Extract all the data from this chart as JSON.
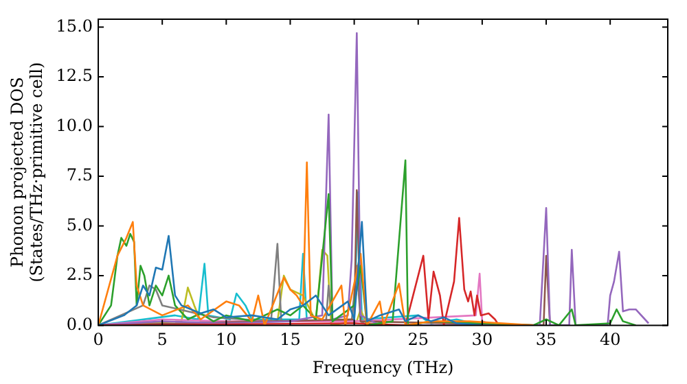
{
  "chart_data": {
    "type": "line",
    "xlabel": "Frequency (THz)",
    "ylabel": "Phonon projected DOS\n(States/THz·primitive cell)",
    "xlim": [
      0,
      44.5
    ],
    "xticks": [
      0,
      5,
      10,
      15,
      20,
      25,
      30,
      35,
      40
    ],
    "ylim": [
      0,
      15.4
    ],
    "yticks": [
      {
        "value": 0,
        "label": "0.0"
      },
      2.5,
      {
        "value": 5,
        "label": "5.0"
      },
      7.5,
      {
        "value": 10,
        "label": "10.0"
      },
      12.5,
      {
        "value": 15,
        "label": "15.0"
      }
    ],
    "grid": false,
    "legend": false,
    "marker": "none",
    "line_style": "solid",
    "series": [
      {
        "color": "#1f77b4",
        "x": [
          0,
          2,
          3,
          3.5,
          4,
          4.5,
          5,
          5.5,
          6,
          6.5,
          8,
          9,
          10,
          12,
          14,
          15,
          16,
          17,
          18,
          19.5,
          20,
          20.6,
          21,
          22,
          23.5,
          24,
          25,
          26,
          27,
          28,
          30
        ],
        "values": [
          0,
          0.5,
          1,
          2,
          1.5,
          2.9,
          2.8,
          4.5,
          1.5,
          1,
          0.6,
          0.8,
          0.4,
          0.5,
          0.3,
          0.8,
          1,
          1.5,
          0.5,
          1.2,
          0.3,
          5.2,
          0.2,
          0.5,
          0.8,
          0.2,
          0.5,
          0.2,
          0.4,
          0.1,
          0
        ]
      },
      {
        "color": "#ff7f0e",
        "x": [
          0,
          1.5,
          2.2,
          2.7,
          3,
          3.5,
          5,
          7,
          8,
          10,
          11,
          12,
          12.5,
          13,
          14.5,
          15,
          15.5,
          16,
          16.3,
          16.6,
          17.5,
          19,
          19.3,
          20.5,
          21,
          22,
          22.3,
          23.5,
          24,
          26,
          29,
          34
        ],
        "values": [
          0,
          3.5,
          4.4,
          5.2,
          2,
          1,
          0.5,
          1,
          0.3,
          1.2,
          1,
          0.2,
          1.5,
          0,
          2.4,
          1.8,
          1.5,
          1,
          8.2,
          0.5,
          0.3,
          2,
          0,
          3.6,
          0,
          1.2,
          0,
          2.1,
          0,
          0.2,
          0.2,
          0
        ]
      },
      {
        "color": "#2ca02c",
        "x": [
          0,
          1,
          1.5,
          1.8,
          2.2,
          2.5,
          2.8,
          3,
          3.3,
          3.6,
          4,
          4.5,
          5,
          5.5,
          6,
          7,
          8,
          9,
          10,
          12,
          14,
          15,
          16,
          17,
          18,
          18.3,
          20,
          20.5,
          21,
          23,
          24,
          24.2,
          26,
          30,
          34,
          35,
          36,
          37,
          37.3,
          40,
          40.5,
          41,
          42
        ],
        "values": [
          0,
          1,
          3.5,
          4.4,
          4,
          4.6,
          4.2,
          1,
          3,
          2.5,
          1,
          2,
          1.5,
          2.5,
          1,
          0.3,
          0.6,
          0.2,
          0.5,
          0.2,
          0.8,
          0.5,
          1,
          0.3,
          6.6,
          0.2,
          1,
          3,
          0,
          0.2,
          8.3,
          0,
          0.2,
          0.1,
          0,
          0.3,
          0,
          0.8,
          0,
          0.1,
          0.8,
          0.2,
          0
        ]
      },
      {
        "color": "#d62728",
        "x": [
          0,
          20,
          24,
          25,
          25.4,
          25.8,
          26.2,
          26.7,
          27,
          27.8,
          28.2,
          28.6,
          28.9,
          29.1,
          29.4,
          29.6,
          29.9,
          30.5,
          31,
          31.3
        ],
        "values": [
          0,
          0.1,
          0,
          2.5,
          3.5,
          0.3,
          2.7,
          1.5,
          0,
          2.2,
          5.4,
          1.8,
          1.2,
          1.7,
          0.5,
          1.5,
          0.5,
          0.6,
          0.3,
          0
        ]
      },
      {
        "color": "#9467bd",
        "x": [
          0,
          5,
          10,
          15,
          17.5,
          18,
          18.3,
          19.5,
          19.8,
          20.2,
          20.5,
          22,
          34.5,
          35,
          35.3,
          36.8,
          37,
          37.3,
          39.8,
          40,
          40.3,
          40.7,
          41,
          41.5,
          42,
          43
        ],
        "values": [
          0,
          0.2,
          0.1,
          0.2,
          0.5,
          10.6,
          0.3,
          0.5,
          3.3,
          14.7,
          0.5,
          0,
          0,
          5.9,
          0,
          0,
          3.8,
          0,
          0,
          1.5,
          2.2,
          3.7,
          0.7,
          0.8,
          0.8,
          0.1
        ]
      },
      {
        "color": "#8c564b",
        "x": [
          0,
          20,
          20.2,
          20.5,
          34.8,
          35,
          35.3
        ],
        "values": [
          0,
          0.3,
          6.8,
          0.2,
          0,
          3.5,
          0
        ]
      },
      {
        "color": "#e377c2",
        "x": [
          0,
          5,
          10,
          20,
          29.5,
          29.8,
          30,
          31
        ],
        "values": [
          0,
          0.3,
          0.2,
          0.2,
          0.5,
          2.6,
          0.2,
          0
        ]
      },
      {
        "color": "#7f7f7f",
        "x": [
          0,
          3.5,
          4,
          4.5,
          5,
          9,
          13.5,
          14,
          14.3,
          17.8,
          18,
          18.3,
          19.8,
          20.2,
          20.5,
          21
        ],
        "values": [
          0,
          1,
          2,
          1.8,
          1,
          0.4,
          0.2,
          4.1,
          0.2,
          0.2,
          2,
          0.2,
          0.2,
          3,
          0.2,
          0
        ]
      },
      {
        "color": "#bcbd22",
        "x": [
          0,
          6.5,
          7,
          7.5,
          8,
          14,
          14.5,
          15,
          16,
          17,
          17.5,
          17.9,
          18.2,
          20.2,
          20.5,
          21
        ],
        "values": [
          0,
          0.2,
          1.9,
          1,
          0.2,
          0.2,
          2.5,
          1.8,
          1.5,
          0.2,
          3.8,
          3.5,
          0,
          0.2,
          0.8,
          0
        ]
      },
      {
        "color": "#17becf",
        "x": [
          0,
          6,
          7.8,
          8.3,
          8.6,
          10.3,
          10.8,
          11.5,
          12,
          15.7,
          16,
          16.3,
          20,
          20.3,
          20.6,
          25,
          26,
          28,
          30
        ],
        "values": [
          0,
          0.5,
          0.3,
          3.1,
          0.5,
          0.3,
          1.6,
          1,
          0.3,
          0.3,
          3.6,
          0.2,
          0.2,
          6.7,
          0.3,
          0.5,
          0.1,
          0.3,
          0
        ]
      }
    ]
  }
}
